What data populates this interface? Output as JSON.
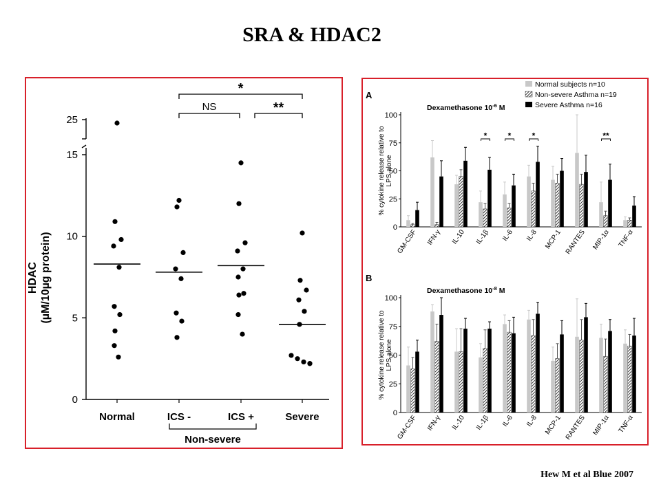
{
  "slide": {
    "title": "SRA & HDAC2",
    "citation": "Hew M et al Blue 2007"
  },
  "chart_data": [
    {
      "type": "scatter",
      "ylabel_line1": "HDAC",
      "ylabel_line2": "(µM/10µg protein)",
      "y_ticks": [
        "0",
        "5",
        "10",
        "15",
        "25"
      ],
      "ylim": [
        0,
        25
      ],
      "axis_break": "15-25",
      "categories": [
        "Normal",
        "ICS -",
        "ICS +",
        "Severe"
      ],
      "group_label": "Non-severe",
      "points": [
        [
          24.3,
          10.9,
          9.8,
          9.4,
          8.1,
          5.7,
          5.2,
          4.2,
          3.3,
          2.6
        ],
        [
          12.2,
          11.8,
          9.0,
          8.0,
          7.4,
          5.3,
          4.8,
          3.8
        ],
        [
          14.5,
          12.0,
          9.6,
          9.1,
          8.0,
          7.5,
          6.5,
          6.4,
          5.2,
          4.0
        ],
        [
          10.2,
          7.3,
          6.7,
          6.1,
          5.4,
          4.6,
          2.7,
          2.5,
          2.3,
          2.2,
          2.2
        ]
      ],
      "medians": [
        8.3,
        7.8,
        8.2,
        4.6
      ],
      "comparisons": [
        {
          "from": "ICS -",
          "to": "Severe",
          "label": "*"
        },
        {
          "from": "ICS -",
          "to": "ICS +",
          "label": "NS"
        },
        {
          "from": "ICS +",
          "to": "Severe",
          "label": "**"
        }
      ]
    },
    {
      "type": "bar",
      "panel_letter": "A",
      "title_main": "Dexamethasone 10",
      "title_exp": "-6",
      "title_unit": " M",
      "ylabel_line1": "% cytokine release relative to",
      "ylabel_line2": "LPS alone",
      "ylim": [
        0,
        100
      ],
      "y_ticks": [
        0,
        25,
        50,
        75,
        100
      ],
      "categories": [
        "GM-CSF",
        "IFN-γ",
        "IL-10",
        "IL-1β",
        "IL-6",
        "IL-8",
        "MCP-1",
        "RANTES",
        "MIP-1α",
        "TNF-α"
      ],
      "series": [
        {
          "name": "Normal subjects n=10",
          "values": [
            6,
            62,
            38,
            22,
            29,
            45,
            42,
            66,
            22,
            6
          ],
          "errors": [
            4,
            15,
            8,
            10,
            11,
            10,
            12,
            35,
            18,
            3
          ]
        },
        {
          "name": "Non-severe Asthma n=19",
          "values": [
            2,
            2,
            45,
            16,
            17,
            32,
            39,
            38,
            10,
            6
          ],
          "errors": [
            1,
            2,
            6,
            5,
            4,
            7,
            8,
            9,
            4,
            2
          ]
        },
        {
          "name": "Severe Asthma n=16",
          "values": [
            15,
            45,
            59,
            51,
            37,
            58,
            50,
            49,
            42,
            19
          ],
          "errors": [
            7,
            14,
            12,
            11,
            10,
            14,
            11,
            15,
            14,
            8
          ]
        }
      ],
      "significance": [
        {
          "category": "IL-1β",
          "label": "*"
        },
        {
          "category": "IL-6",
          "label": "*"
        },
        {
          "category": "IL-8",
          "label": "*"
        },
        {
          "category": "MIP-1α",
          "label": "**"
        }
      ],
      "legend_position": "top-right"
    },
    {
      "type": "bar",
      "panel_letter": "B",
      "title_main": "Dexamethasone 10",
      "title_exp": "-8",
      "title_unit": " M",
      "ylabel_line1": "% cytokine release relative to",
      "ylabel_line2": "LPS alone",
      "ylim": [
        0,
        100
      ],
      "y_ticks": [
        0,
        25,
        50,
        75,
        100
      ],
      "categories": [
        "GM-CSF",
        "IFN-γ",
        "IL-10",
        "IL-1β",
        "IL-6",
        "IL-8",
        "MCP-1",
        "RANTES",
        "MIP-1α",
        "TNF-α"
      ],
      "series": [
        {
          "name": "Normal subjects n=10",
          "values": [
            41,
            88,
            53,
            48,
            77,
            81,
            45,
            66,
            65,
            60
          ],
          "errors": [
            16,
            6,
            20,
            12,
            8,
            8,
            12,
            33,
            12,
            12
          ]
        },
        {
          "name": "Non-severe Asthma n=19",
          "values": [
            38,
            62,
            53,
            56,
            70,
            67,
            47,
            63,
            49,
            58
          ],
          "errors": [
            10,
            15,
            20,
            16,
            10,
            14,
            13,
            18,
            15,
            10
          ]
        },
        {
          "name": "Severe Asthma n=16",
          "values": [
            53,
            85,
            73,
            73,
            69,
            86,
            68,
            83,
            71,
            67
          ],
          "errors": [
            10,
            15,
            9,
            6,
            14,
            10,
            12,
            12,
            10,
            15
          ]
        }
      ]
    }
  ],
  "legend_colors": [
    "#c8c8c8",
    "hatch",
    "#000000"
  ]
}
